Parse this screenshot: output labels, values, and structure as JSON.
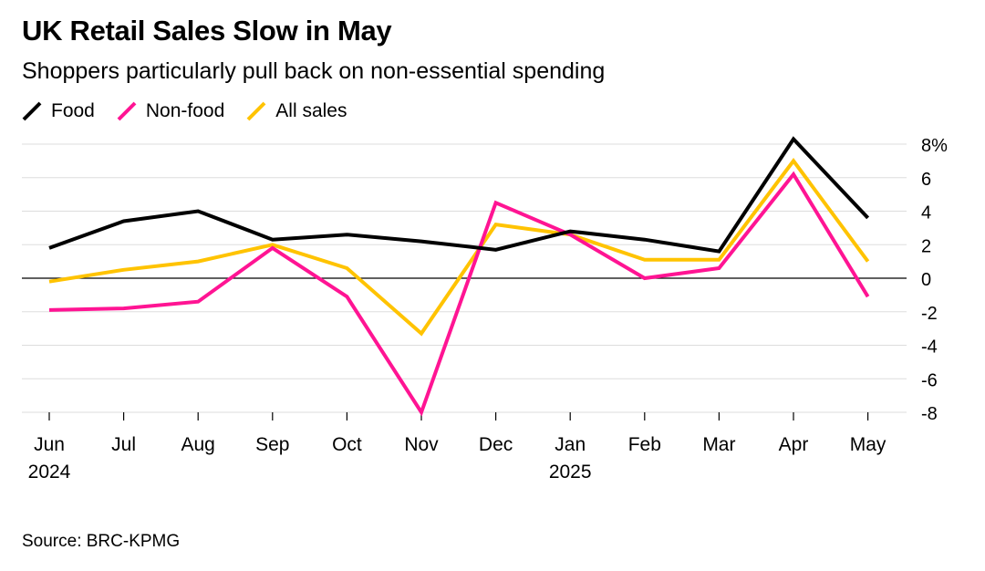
{
  "chart_data": {
    "type": "line",
    "title": "UK Retail Sales Slow in May",
    "subtitle": "Shoppers particularly pull back on non-essential spending",
    "source": "Source: BRC-KPMG",
    "categories": [
      "Jun",
      "Jul",
      "Aug",
      "Sep",
      "Oct",
      "Nov",
      "Dec",
      "Jan",
      "Feb",
      "Mar",
      "Apr",
      "May"
    ],
    "year_labels": [
      "2024",
      "",
      "",
      "",
      "",
      "",
      "",
      "2025",
      "",
      "",
      "",
      ""
    ],
    "series": [
      {
        "name": "Food",
        "color": "#000000",
        "values": [
          1.8,
          3.4,
          4.0,
          2.3,
          2.6,
          2.2,
          1.7,
          2.8,
          2.3,
          1.6,
          8.3,
          3.6
        ]
      },
      {
        "name": "Non-food",
        "color": "#ff1493",
        "values": [
          -1.9,
          -1.8,
          -1.4,
          1.8,
          -1.1,
          -8.0,
          4.5,
          2.6,
          0.0,
          0.6,
          6.2,
          -1.1
        ]
      },
      {
        "name": "All sales",
        "color": "#ffc300",
        "values": [
          -0.2,
          0.5,
          1.0,
          2.0,
          0.6,
          -3.3,
          3.2,
          2.6,
          1.1,
          1.1,
          7.0,
          1.0
        ]
      }
    ],
    "yticks": [
      {
        "value": 8,
        "label": "8%"
      },
      {
        "value": 6,
        "label": "6"
      },
      {
        "value": 4,
        "label": "4"
      },
      {
        "value": 2,
        "label": "2"
      },
      {
        "value": 0,
        "label": "0"
      },
      {
        "value": -2,
        "label": "-2"
      },
      {
        "value": -4,
        "label": "-4"
      },
      {
        "value": -6,
        "label": "-6"
      },
      {
        "value": -8,
        "label": "-8"
      }
    ],
    "ylim": [
      -8,
      8
    ],
    "grid": true,
    "y_axis_position": "right",
    "legend_position": "top-left"
  }
}
